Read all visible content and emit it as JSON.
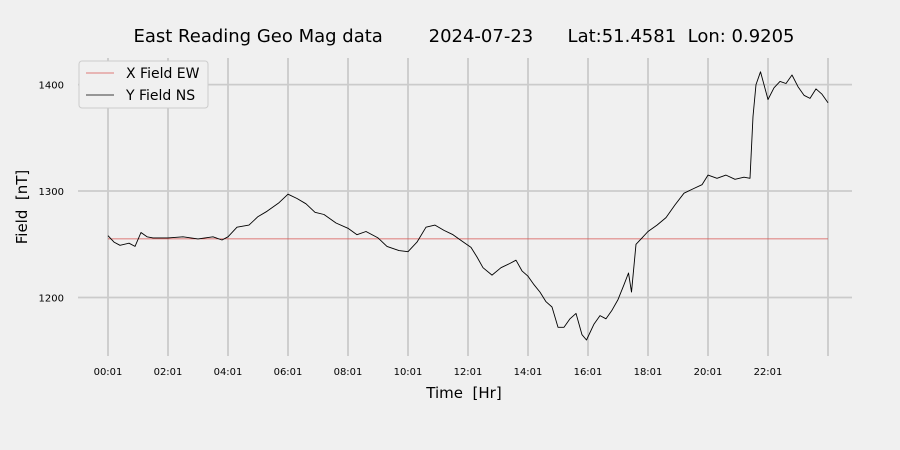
{
  "chart_data": {
    "type": "line",
    "title": "East Reading Geo Mag data        2024-07-23      Lat:51.4581  Lon: 0.9205",
    "xlabel": "Time  [Hr]",
    "ylabel": "Field  [nT]",
    "x_ticks": [
      "00:01",
      "02:01",
      "04:01",
      "06:01",
      "08:01",
      "10:01",
      "12:01",
      "14:01",
      "16:01",
      "18:01",
      "20:01",
      "22:01"
    ],
    "y_ticks": [
      1200,
      1300,
      1400
    ],
    "xlim_hours": [
      -1.0,
      24.8
    ],
    "ylim": [
      1145,
      1425
    ],
    "grid": true,
    "legend_position": "top-left",
    "series": [
      {
        "name": "X Field EW",
        "color": "#d9534f",
        "x_hours": [
          0.0,
          24.0
        ],
        "values": [
          1255,
          1255
        ]
      },
      {
        "name": "Y Field NS",
        "color": "#000000",
        "x_hours": [
          0.0,
          0.2,
          0.4,
          0.7,
          0.9,
          1.1,
          1.3,
          1.5,
          2.0,
          2.5,
          3.0,
          3.5,
          3.8,
          4.0,
          4.3,
          4.7,
          5.0,
          5.3,
          5.7,
          6.0,
          6.3,
          6.6,
          6.9,
          7.2,
          7.6,
          8.0,
          8.3,
          8.6,
          9.0,
          9.3,
          9.7,
          10.0,
          10.3,
          10.6,
          10.9,
          11.2,
          11.5,
          11.8,
          12.1,
          12.3,
          12.5,
          12.8,
          13.1,
          13.4,
          13.6,
          13.8,
          14.0,
          14.2,
          14.4,
          14.6,
          14.8,
          15.0,
          15.2,
          15.4,
          15.6,
          15.8,
          15.95,
          16.2,
          16.4,
          16.6,
          16.8,
          17.0,
          17.2,
          17.35,
          17.45,
          17.6,
          17.8,
          18.0,
          18.3,
          18.6,
          18.9,
          19.2,
          19.5,
          19.8,
          20.0,
          20.3,
          20.6,
          20.9,
          21.2,
          21.4,
          21.5,
          21.6,
          21.75,
          22.0,
          22.2,
          22.4,
          22.6,
          22.8,
          23.0,
          23.2,
          23.4,
          23.6,
          23.8,
          24.0
        ],
        "values": [
          1258,
          1252,
          1249,
          1251,
          1248,
          1261,
          1257,
          1256,
          1256,
          1257,
          1255,
          1257,
          1254,
          1257,
          1266,
          1268,
          1276,
          1281,
          1289,
          1297,
          1293,
          1288,
          1280,
          1278,
          1270,
          1265,
          1259,
          1262,
          1256,
          1248,
          1244,
          1243,
          1252,
          1266,
          1268,
          1263,
          1259,
          1253,
          1247,
          1238,
          1228,
          1221,
          1228,
          1232,
          1235,
          1225,
          1220,
          1212,
          1205,
          1196,
          1191,
          1172,
          1172,
          1180,
          1185,
          1165,
          1160,
          1175,
          1183,
          1180,
          1188,
          1198,
          1212,
          1223,
          1205,
          1250,
          1256,
          1262,
          1268,
          1275,
          1287,
          1298,
          1302,
          1306,
          1315,
          1312,
          1315,
          1311,
          1313,
          1312,
          1370,
          1400,
          1412,
          1386,
          1397,
          1403,
          1401,
          1409,
          1398,
          1390,
          1387,
          1396,
          1391,
          1383
        ]
      }
    ]
  }
}
